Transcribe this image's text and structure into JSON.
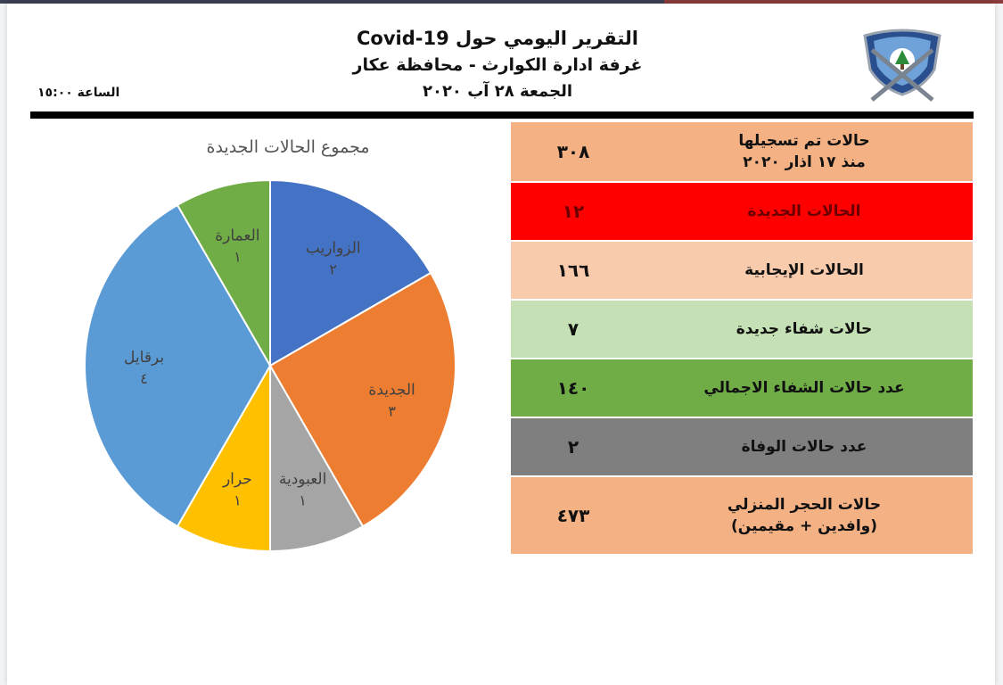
{
  "header": {
    "line1": "التقرير اليومي حول Covid-19",
    "line2": "غرفة ادارة الكوارث - محافظة عكار",
    "line3": "الجمعة ٢٨ آب ٢٠٢٠",
    "time": "الساعة ١٥:٠٠"
  },
  "stats": [
    {
      "label": "حالات تم تسجيلها\nمنذ ١٧ اذار ٢٠٢٠",
      "value": "٣٠٨",
      "color": "#f4b183"
    },
    {
      "label": "الحالات الجديدة",
      "value": "١٢",
      "color": "#ff0000"
    },
    {
      "label": "الحالات الإيجابية",
      "value": "١٦٦",
      "color": "#f8cbad"
    },
    {
      "label": "حالات شفاء جديدة",
      "value": "٧",
      "color": "#c5e0b4"
    },
    {
      "label": "عدد حالات الشفاء الاجمالي",
      "value": "١٤٠",
      "color": "#70ad47"
    },
    {
      "label": "عدد حالات الوفاة",
      "value": "٢",
      "color": "#7f7f7f"
    },
    {
      "label": "حالات الحجر المنزلي\n(وافدين + مقيمين)",
      "value": "٤٧٣",
      "color": "#f4b183"
    }
  ],
  "chart_data": {
    "type": "pie",
    "title": "مجموع الحالات الجديدة",
    "slices": [
      {
        "label": "الزواريب",
        "value": 2,
        "value_label": "٢",
        "color": "#4472c4"
      },
      {
        "label": "الجديدة",
        "value": 3,
        "value_label": "٣",
        "color": "#ed7d31"
      },
      {
        "label": "العبودية",
        "value": 1,
        "value_label": "١",
        "color": "#a5a5a5"
      },
      {
        "label": "حرار",
        "value": 1,
        "value_label": "١",
        "color": "#ffc000"
      },
      {
        "label": "برقايل",
        "value": 4,
        "value_label": "٤",
        "color": "#5b9bd5"
      },
      {
        "label": "العمارة",
        "value": 1,
        "value_label": "١",
        "color": "#70ad47"
      }
    ]
  }
}
